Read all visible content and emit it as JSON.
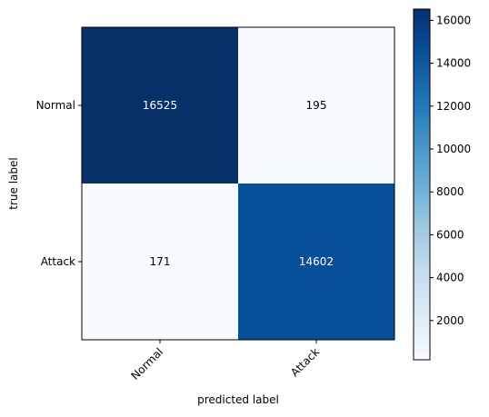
{
  "chart_data": {
    "type": "heatmap",
    "rows": [
      "Normal",
      "Attack"
    ],
    "columns": [
      "Normal",
      "Attack"
    ],
    "values": [
      [
        16525,
        195
      ],
      [
        171,
        14602
      ]
    ],
    "value_labels": [
      [
        "16525",
        "195"
      ],
      [
        "171",
        "14602"
      ]
    ],
    "xlabel": "predicted label",
    "ylabel": "true label",
    "colormap": "Blues",
    "colorbar": {
      "range": [
        171,
        16525
      ],
      "ticks": [
        2000,
        4000,
        6000,
        8000,
        10000,
        12000,
        14000,
        16000
      ],
      "tick_labels": [
        "2000",
        "4000",
        "6000",
        "8000",
        "10000",
        "12000",
        "14000",
        "16000"
      ]
    },
    "x_tick_rotation": 45,
    "grid": false
  }
}
